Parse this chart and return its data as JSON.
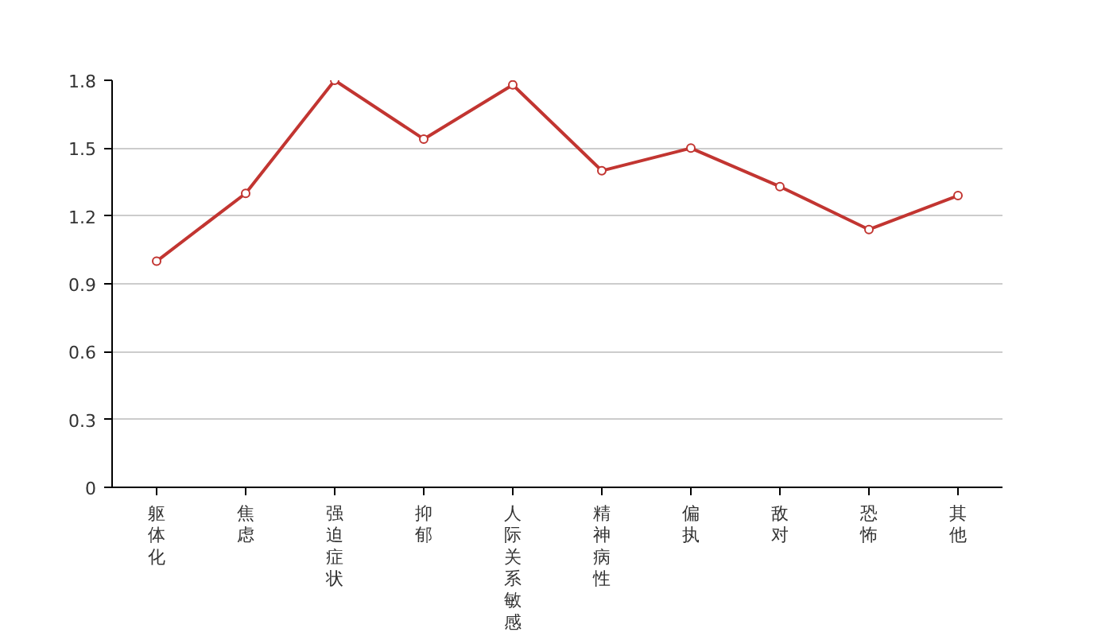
{
  "chart_data": {
    "type": "line",
    "categories": [
      "躯体化",
      "焦虑",
      "强迫症状",
      "抑郁",
      "人际关系敏感",
      "精神病性",
      "偏执",
      "敌对",
      "恐怖",
      "其他"
    ],
    "series": [
      {
        "color": "#c23531",
        "values": [
          1.0,
          1.3,
          1.8,
          1.54,
          1.78,
          1.4,
          1.5,
          1.33,
          1.14,
          1.29
        ]
      }
    ],
    "ylim": [
      0,
      1.8
    ],
    "yticks": [
      0,
      0.3,
      0.6,
      0.9,
      1.2,
      1.5,
      1.8
    ],
    "grid": "y",
    "marker": "circle",
    "line_style": "solid"
  }
}
